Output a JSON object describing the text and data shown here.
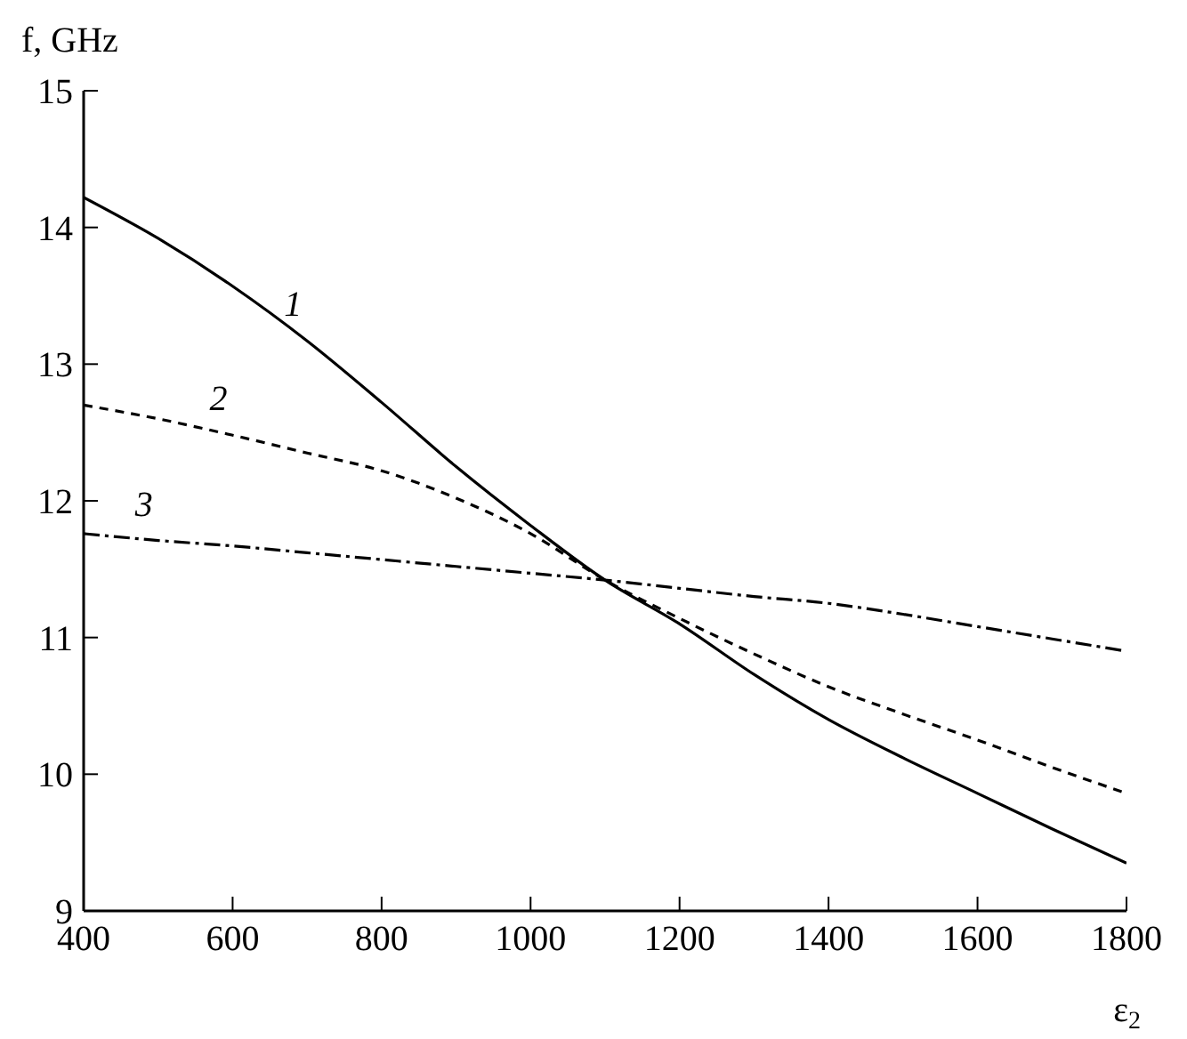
{
  "chart_data": {
    "type": "line",
    "xlabel": "ε$_{2}$",
    "ylabel": "f, GHz",
    "x": [
      400,
      500,
      600,
      700,
      800,
      900,
      1000,
      1100,
      1200,
      1300,
      1400,
      1500,
      1600,
      1700,
      1800
    ],
    "series": [
      {
        "name": "1",
        "color": "#000000",
        "line_style": "solid",
        "values": [
          14.22,
          13.92,
          13.57,
          13.17,
          12.72,
          12.25,
          11.82,
          11.42,
          11.1,
          10.73,
          10.4,
          10.12,
          9.86,
          9.6,
          9.35
        ]
      },
      {
        "name": "2",
        "color": "#000000",
        "line_style": "dashed",
        "values": [
          12.7,
          12.6,
          12.48,
          12.35,
          12.22,
          12.02,
          11.76,
          11.42,
          11.14,
          10.88,
          10.64,
          10.44,
          10.25,
          10.05,
          9.86
        ]
      },
      {
        "name": "3",
        "color": "#000000",
        "line_style": "dashdot",
        "values": [
          11.76,
          11.71,
          11.67,
          11.62,
          11.57,
          11.52,
          11.47,
          11.42,
          11.36,
          11.3,
          11.25,
          11.17,
          11.08,
          10.99,
          10.9
        ]
      }
    ],
    "xlim": [
      400,
      1800
    ],
    "xticks": [
      400,
      600,
      800,
      1000,
      1200,
      1400,
      1600,
      1800
    ],
    "ylim": [
      9,
      15
    ],
    "yticks": [
      9,
      10,
      11,
      12,
      13,
      14,
      15
    ],
    "grid": false,
    "legend": false,
    "marker": "none"
  }
}
